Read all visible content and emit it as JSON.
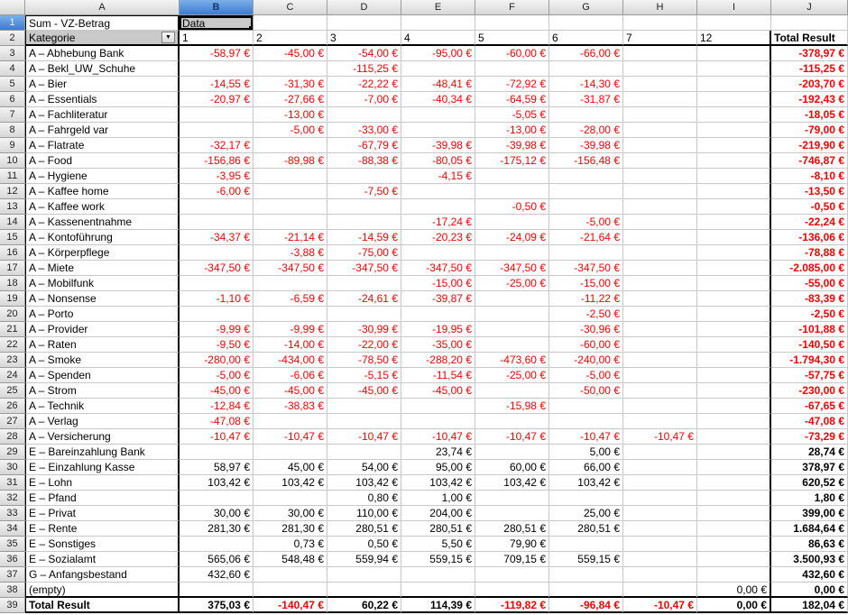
{
  "app": {
    "name": "LibreOffice Calc pivot table view"
  },
  "colors": {
    "negative_value": "#ff0000",
    "positive_value": "#000000",
    "selected_header_blue": "#3d7ad2",
    "header_gray": "#d7d7d7",
    "pivot_button_gray": "#c9c9c9",
    "gridline": "#c8c8c8"
  },
  "selection": {
    "selected_cell": "B1",
    "selected_column": "B",
    "selected_row": 1
  },
  "column_headers": [
    "A",
    "B",
    "C",
    "D",
    "E",
    "F",
    "G",
    "H",
    "I",
    "J"
  ],
  "row_count": 39,
  "pivot": {
    "title_cell": "Sum - VZ-Betrag",
    "data_cell": "Data",
    "category_label": "Kategorie",
    "dropdown_icon": "▼",
    "value_columns": [
      "1",
      "2",
      "3",
      "4",
      "5",
      "6",
      "7",
      "12"
    ],
    "total_label": "Total Result"
  },
  "rows": [
    {
      "label": "A – Abhebung Bank",
      "values": [
        "-58,97 €",
        "-45,00 €",
        "-54,00 €",
        "-95,00 €",
        "-60,00 €",
        "-66,00 €",
        "",
        ""
      ],
      "total": "-378,97 €"
    },
    {
      "label": "A – Bekl_UW_Schuhe",
      "values": [
        "",
        "",
        "-115,25 €",
        "",
        "",
        "",
        "",
        ""
      ],
      "total": "-115,25 €"
    },
    {
      "label": "A – Bier",
      "values": [
        "-14,55 €",
        "-31,30 €",
        "-22,22 €",
        "-48,41 €",
        "-72,92 €",
        "-14,30 €",
        "",
        ""
      ],
      "total": "-203,70 €"
    },
    {
      "label": "A – Essentials",
      "values": [
        "-20,97 €",
        "-27,66 €",
        "-7,00 €",
        "-40,34 €",
        "-64,59 €",
        "-31,87 €",
        "",
        ""
      ],
      "total": "-192,43 €"
    },
    {
      "label": "A – Fachliteratur",
      "values": [
        "",
        "-13,00 €",
        "",
        "",
        "-5,05 €",
        "",
        "",
        ""
      ],
      "total": "-18,05 €"
    },
    {
      "label": "A – Fahrgeld var",
      "values": [
        "",
        "-5,00 €",
        "-33,00 €",
        "",
        "-13,00 €",
        "-28,00 €",
        "",
        ""
      ],
      "total": "-79,00 €"
    },
    {
      "label": "A – Flatrate",
      "values": [
        "-32,17 €",
        "",
        "-67,79 €",
        "-39,98 €",
        "-39,98 €",
        "-39,98 €",
        "",
        ""
      ],
      "total": "-219,90 €"
    },
    {
      "label": "A – Food",
      "values": [
        "-156,86 €",
        "-89,98 €",
        "-88,38 €",
        "-80,05 €",
        "-175,12 €",
        "-156,48 €",
        "",
        ""
      ],
      "total": "-746,87 €"
    },
    {
      "label": "A – Hygiene",
      "values": [
        "-3,95 €",
        "",
        "",
        "-4,15 €",
        "",
        "",
        "",
        ""
      ],
      "total": "-8,10 €"
    },
    {
      "label": "A – Kaffee home",
      "values": [
        "-6,00 €",
        "",
        "-7,50 €",
        "",
        "",
        "",
        "",
        ""
      ],
      "total": "-13,50 €"
    },
    {
      "label": "A – Kaffee work",
      "values": [
        "",
        "",
        "",
        "",
        "-0,50 €",
        "",
        "",
        ""
      ],
      "total": "-0,50 €"
    },
    {
      "label": "A – Kassenentnahme",
      "values": [
        "",
        "",
        "",
        "-17,24 €",
        "",
        "-5,00 €",
        "",
        ""
      ],
      "total": "-22,24 €"
    },
    {
      "label": "A – Kontoführung",
      "values": [
        "-34,37 €",
        "-21,14 €",
        "-14,59 €",
        "-20,23 €",
        "-24,09 €",
        "-21,64 €",
        "",
        ""
      ],
      "total": "-136,06 €"
    },
    {
      "label": "A – Körperpflege",
      "values": [
        "",
        "-3,88 €",
        "-75,00 €",
        "",
        "",
        "",
        "",
        ""
      ],
      "total": "-78,88 €"
    },
    {
      "label": "A – Miete",
      "values": [
        "-347,50 €",
        "-347,50 €",
        "-347,50 €",
        "-347,50 €",
        "-347,50 €",
        "-347,50 €",
        "",
        ""
      ],
      "total": "-2.085,00 €"
    },
    {
      "label": "A – Mobilfunk",
      "values": [
        "",
        "",
        "",
        "-15,00 €",
        "-25,00 €",
        "-15,00 €",
        "",
        ""
      ],
      "total": "-55,00 €"
    },
    {
      "label": "A – Nonsense",
      "values": [
        "-1,10 €",
        "-6,59 €",
        "-24,61 €",
        "-39,87 €",
        "",
        "-11,22 €",
        "",
        ""
      ],
      "total": "-83,39 €"
    },
    {
      "label": "A – Porto",
      "values": [
        "",
        "",
        "",
        "",
        "",
        "-2,50 €",
        "",
        ""
      ],
      "total": "-2,50 €"
    },
    {
      "label": "A – Provider",
      "values": [
        "-9,99 €",
        "-9,99 €",
        "-30,99 €",
        "-19,95 €",
        "",
        "-30,96 €",
        "",
        ""
      ],
      "total": "-101,88 €"
    },
    {
      "label": "A – Raten",
      "values": [
        "-9,50 €",
        "-14,00 €",
        "-22,00 €",
        "-35,00 €",
        "",
        "-60,00 €",
        "",
        ""
      ],
      "total": "-140,50 €"
    },
    {
      "label": "A – Smoke",
      "values": [
        "-280,00 €",
        "-434,00 €",
        "-78,50 €",
        "-288,20 €",
        "-473,60 €",
        "-240,00 €",
        "",
        ""
      ],
      "total": "-1.794,30 €"
    },
    {
      "label": "A – Spenden",
      "values": [
        "-5,00 €",
        "-6,06 €",
        "-5,15 €",
        "-11,54 €",
        "-25,00 €",
        "-5,00 €",
        "",
        ""
      ],
      "total": "-57,75 €"
    },
    {
      "label": "A – Strom",
      "values": [
        "-45,00 €",
        "-45,00 €",
        "-45,00 €",
        "-45,00 €",
        "",
        "-50,00 €",
        "",
        ""
      ],
      "total": "-230,00 €"
    },
    {
      "label": "A – Technik",
      "values": [
        "-12,84 €",
        "-38,83 €",
        "",
        "",
        "-15,98 €",
        "",
        "",
        ""
      ],
      "total": "-67,65 €"
    },
    {
      "label": "A – Verlag",
      "values": [
        "-47,08 €",
        "",
        "",
        "",
        "",
        "",
        "",
        ""
      ],
      "total": "-47,08 €"
    },
    {
      "label": "A – Versicherung",
      "values": [
        "-10,47 €",
        "-10,47 €",
        "-10,47 €",
        "-10,47 €",
        "-10,47 €",
        "-10,47 €",
        "-10,47 €",
        ""
      ],
      "total": "-73,29 €"
    },
    {
      "label": "E – Bareinzahlung Bank",
      "values": [
        "",
        "",
        "",
        "23,74 €",
        "",
        "5,00 €",
        "",
        ""
      ],
      "total": "28,74 €"
    },
    {
      "label": "E – Einzahlung Kasse",
      "values": [
        "58,97 €",
        "45,00 €",
        "54,00 €",
        "95,00 €",
        "60,00 €",
        "66,00 €",
        "",
        ""
      ],
      "total": "378,97 €"
    },
    {
      "label": "E – Lohn",
      "values": [
        "103,42 €",
        "103,42 €",
        "103,42 €",
        "103,42 €",
        "103,42 €",
        "103,42 €",
        "",
        ""
      ],
      "total": "620,52 €"
    },
    {
      "label": "E – Pfand",
      "values": [
        "",
        "",
        "0,80 €",
        "1,00 €",
        "",
        "",
        "",
        ""
      ],
      "total": "1,80 €"
    },
    {
      "label": "E – Privat",
      "values": [
        "30,00 €",
        "30,00 €",
        "110,00 €",
        "204,00 €",
        "",
        "25,00 €",
        "",
        ""
      ],
      "total": "399,00 €"
    },
    {
      "label": "E – Rente",
      "values": [
        "281,30 €",
        "281,30 €",
        "280,51 €",
        "280,51 €",
        "280,51 €",
        "280,51 €",
        "",
        ""
      ],
      "total": "1.684,64 €"
    },
    {
      "label": "E – Sonstiges",
      "values": [
        "",
        "0,73 €",
        "0,50 €",
        "5,50 €",
        "79,90 €",
        "",
        "",
        ""
      ],
      "total": "86,63 €"
    },
    {
      "label": "E – Sozialamt",
      "values": [
        "565,06 €",
        "548,48 €",
        "559,94 €",
        "559,15 €",
        "709,15 €",
        "559,15 €",
        "",
        ""
      ],
      "total": "3.500,93 €"
    },
    {
      "label": "G – Anfangsbestand",
      "values": [
        "432,60 €",
        "",
        "",
        "",
        "",
        "",
        "",
        ""
      ],
      "total": "432,60 €"
    },
    {
      "label": "(empty)",
      "values": [
        "",
        "",
        "",
        "",
        "",
        "",
        "",
        "0,00 €"
      ],
      "total": "0,00 €"
    }
  ],
  "total_row": {
    "label": "Total Result",
    "values": [
      "375,03 €",
      "-140,47 €",
      "60,22 €",
      "114,39 €",
      "-119,82 €",
      "-96,84 €",
      "-10,47 €",
      "0,00 €"
    ],
    "total": "182,04 €"
  }
}
